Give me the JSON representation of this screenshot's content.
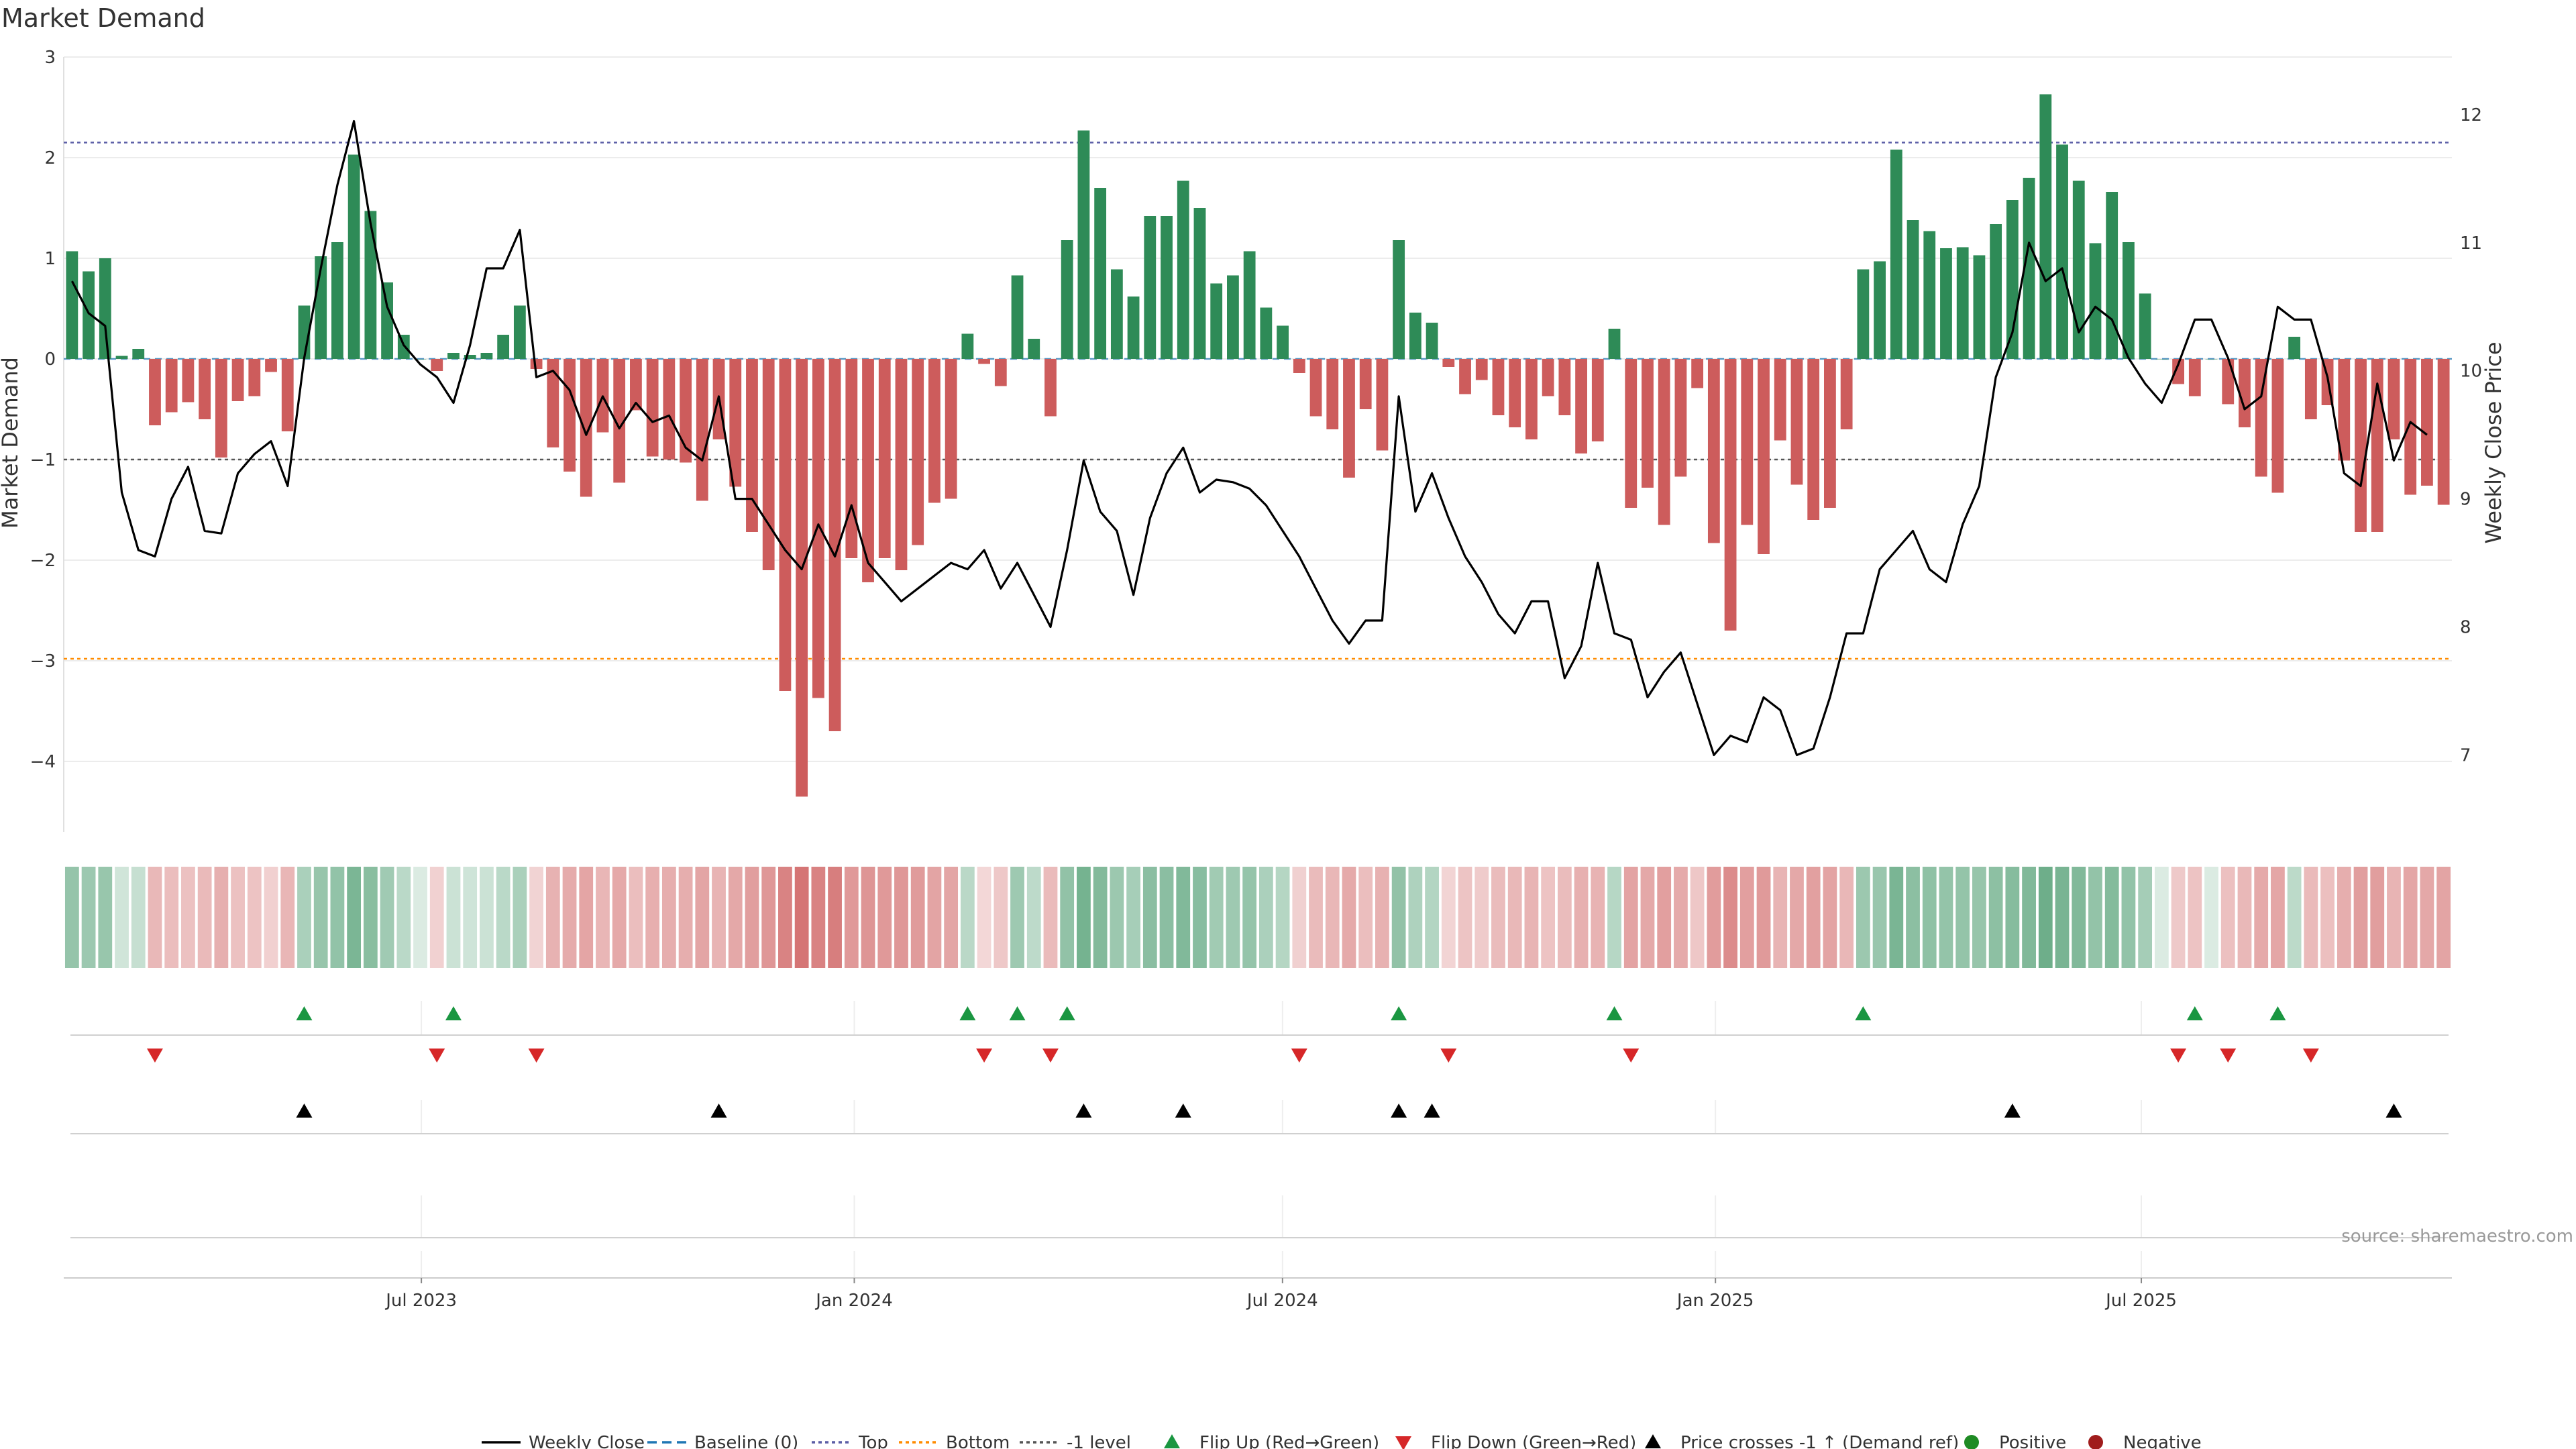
{
  "chart_data": {
    "type": "bar",
    "title": "Market Demand",
    "ylabel": "Market Demand",
    "y2label": "Weekly Close Price",
    "ylim": [
      -4.7,
      3.0
    ],
    "y2lim": [
      6.4,
      12.45
    ],
    "yticks": [
      3,
      2,
      1,
      0,
      -1,
      -2,
      -3,
      -4
    ],
    "y2ticks": [
      12,
      11,
      10,
      9,
      8,
      7
    ],
    "x_start": "2023-01-30",
    "x_end": "2025-11-10",
    "xticks": [
      {
        "date": "2023-07-01",
        "label": "Jul 2023"
      },
      {
        "date": "2024-01-01",
        "label": "Jan 2024"
      },
      {
        "date": "2024-07-01",
        "label": "Jul 2024"
      },
      {
        "date": "2025-01-01",
        "label": "Jan 2025"
      },
      {
        "date": "2025-07-01",
        "label": "Jul 2025"
      }
    ],
    "reference_lines": {
      "top": 2.15,
      "bottom": -2.98,
      "minus_one": -1.0,
      "baseline": 0
    },
    "demand": [
      1.07,
      0.87,
      1.0,
      0.03,
      0.1,
      -0.66,
      -0.53,
      -0.43,
      -0.6,
      -0.98,
      -0.42,
      -0.37,
      -0.13,
      -0.72,
      0.53,
      1.02,
      1.16,
      2.03,
      1.47,
      0.76,
      0.24,
      0.0,
      -0.12,
      0.06,
      0.04,
      0.06,
      0.24,
      0.53,
      -0.1,
      -0.88,
      -1.12,
      -1.37,
      -0.73,
      -1.23,
      -0.51,
      -0.97,
      -1.0,
      -1.03,
      -1.41,
      -0.8,
      -1.27,
      -1.72,
      -2.1,
      -3.3,
      -4.35,
      -3.37,
      -3.7,
      -1.98,
      -2.22,
      -1.98,
      -2.1,
      -1.85,
      -1.43,
      -1.39,
      0.25,
      -0.05,
      -0.27,
      0.83,
      0.2,
      -0.57,
      1.18,
      2.27,
      1.7,
      0.89,
      0.62,
      1.42,
      1.42,
      1.77,
      1.5,
      0.75,
      0.83,
      1.07,
      0.51,
      0.33,
      -0.14,
      -0.57,
      -0.7,
      -1.18,
      -0.5,
      -0.91,
      1.18,
      0.46,
      0.36,
      -0.08,
      -0.35,
      -0.21,
      -0.56,
      -0.68,
      -0.8,
      -0.37,
      -0.56,
      -0.94,
      -0.82,
      0.3,
      -1.48,
      -1.28,
      -1.65,
      -1.17,
      -0.29,
      -1.83,
      -2.7,
      -1.65,
      -1.94,
      -0.81,
      -1.25,
      -1.6,
      -1.48,
      -0.7,
      0.89,
      0.97,
      2.08,
      1.38,
      1.27,
      1.1,
      1.11,
      1.03,
      1.34,
      1.58,
      1.8,
      2.63,
      2.13,
      1.77,
      1.15,
      1.66,
      1.16,
      0.65,
      0.0,
      -0.25,
      -0.37,
      0.0,
      -0.45,
      -0.68,
      -1.17,
      -1.33,
      0.22,
      -0.6,
      -0.46,
      -1.01,
      -1.72,
      -1.72,
      -0.8,
      -1.35,
      -1.26,
      -1.45
    ],
    "price": [
      10.7,
      10.45,
      10.35,
      9.05,
      8.6,
      8.55,
      9.0,
      9.25,
      8.75,
      8.73,
      9.2,
      9.35,
      9.45,
      9.1,
      10.1,
      10.8,
      11.45,
      11.95,
      11.15,
      10.5,
      10.2,
      10.05,
      9.95,
      9.75,
      10.2,
      10.8,
      10.8,
      11.1,
      9.95,
      10.0,
      9.85,
      9.5,
      9.8,
      9.55,
      9.75,
      9.6,
      9.65,
      9.4,
      9.3,
      9.8,
      9.0,
      9.0,
      8.8,
      8.6,
      8.45,
      8.8,
      8.55,
      8.95,
      8.5,
      8.35,
      8.2,
      8.3,
      8.4,
      8.5,
      8.45,
      8.6,
      8.3,
      8.5,
      8.25,
      8.0,
      8.6,
      9.3,
      8.9,
      8.75,
      8.25,
      8.85,
      9.2,
      9.4,
      9.05,
      9.15,
      9.13,
      9.08,
      8.95,
      8.75,
      8.55,
      8.3,
      8.05,
      7.87,
      8.05,
      8.05,
      9.8,
      8.9,
      9.2,
      8.85,
      8.55,
      8.35,
      8.1,
      7.95,
      8.2,
      8.2,
      7.6,
      7.85,
      8.5,
      7.95,
      7.9,
      7.45,
      7.65,
      7.8,
      7.4,
      7.0,
      7.15,
      7.1,
      7.45,
      7.35,
      7.0,
      7.05,
      7.45,
      7.95,
      7.95,
      8.45,
      8.6,
      8.75,
      8.45,
      8.35,
      8.8,
      9.1,
      9.95,
      10.3,
      11.0,
      10.7,
      10.8,
      10.3,
      10.5,
      10.4,
      10.1,
      9.9,
      9.75,
      10.05,
      10.4,
      10.4,
      10.1,
      9.7,
      9.8,
      10.5,
      10.4,
      10.4,
      9.95,
      9.2,
      9.1,
      9.9,
      9.3,
      9.6,
      9.5
    ],
    "flip_up_weeks": [
      14,
      23,
      54,
      57,
      60,
      80,
      93,
      108,
      128,
      133
    ],
    "flip_down_weeks": [
      5,
      22,
      28,
      55,
      59,
      74,
      83,
      94,
      127,
      130,
      135
    ],
    "price_cross_weeks": [
      14,
      39,
      61,
      67,
      80,
      82,
      117,
      140
    ],
    "legend": [
      {
        "label": "Weekly Close",
        "kind": "line",
        "color": "#000000"
      },
      {
        "label": "Baseline (0)",
        "kind": "dash",
        "color": "#1f77b4"
      },
      {
        "label": "Top",
        "kind": "dot",
        "color": "#5b5ea6"
      },
      {
        "label": "Bottom",
        "kind": "dot",
        "color": "#ff8c00"
      },
      {
        "label": "-1 level",
        "kind": "dot",
        "color": "#555555"
      },
      {
        "label": "Flip Up (Red→Green)",
        "kind": "up",
        "color": "#1a9641"
      },
      {
        "label": "Flip Down (Green→Red)",
        "kind": "down",
        "color": "#d62728"
      },
      {
        "label": "Price crosses -1 ↑ (Demand ref)",
        "kind": "up",
        "color": "#000000"
      },
      {
        "label": "Positive",
        "kind": "dot-marker",
        "color": "#1f8b24"
      },
      {
        "label": "Negative",
        "kind": "dot-marker",
        "color": "#a01c1c"
      }
    ],
    "colors": {
      "positive": "#2e8b57",
      "negative": "#cd5c5c"
    }
  },
  "source": "source: sharemaestro.com"
}
